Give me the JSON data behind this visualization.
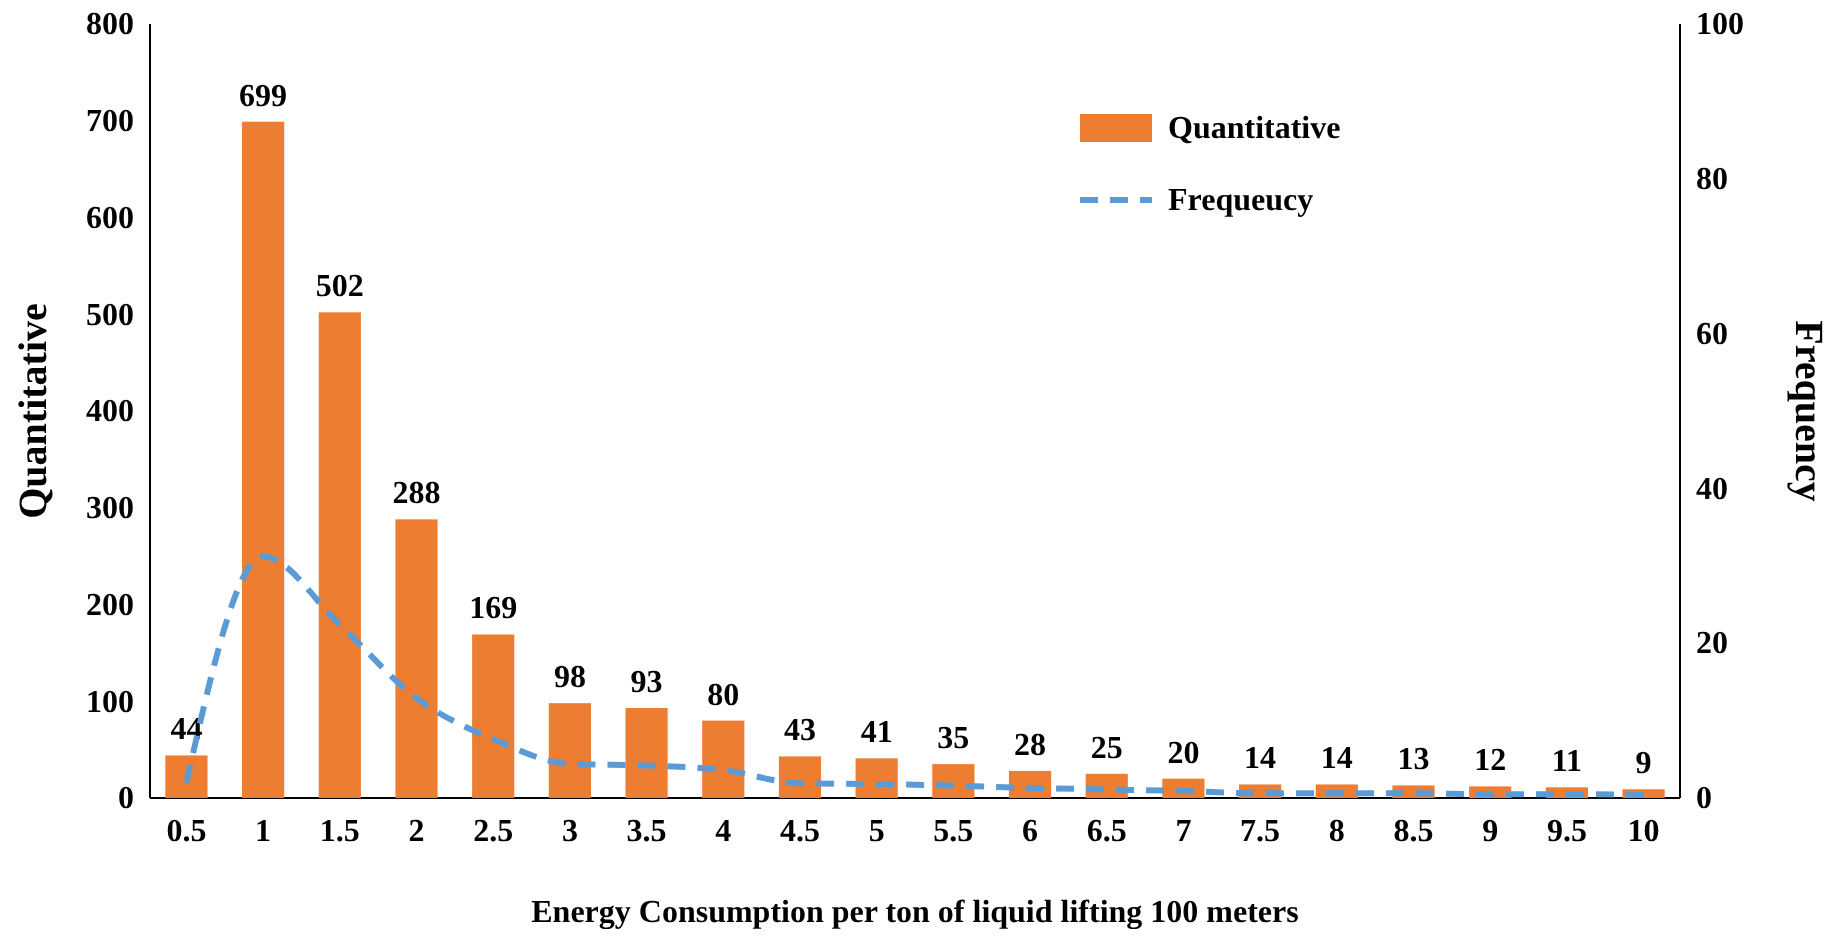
{
  "chart_data": {
    "type": "bar",
    "xlabel": "Energy Consumption per ton of liquid lifting 100 meters",
    "ylabel": "Quantitative",
    "y2label": "Frequency",
    "categories": [
      "0.5",
      "1",
      "1.5",
      "2",
      "2.5",
      "3",
      "3.5",
      "4",
      "4.5",
      "5",
      "5.5",
      "6",
      "6.5",
      "7",
      "7.5",
      "8",
      "8.5",
      "9",
      "9.5",
      "10"
    ],
    "series": [
      {
        "name": "Quantitative",
        "color": "#ed7d31",
        "values": [
          44,
          699,
          502,
          288,
          169,
          98,
          93,
          80,
          43,
          41,
          35,
          28,
          25,
          20,
          14,
          14,
          13,
          12,
          11,
          9
        ],
        "value_labels": [
          "44",
          "699",
          "502",
          "288",
          "169",
          "98",
          "93",
          "80",
          "43",
          "41",
          "35",
          "28",
          "25",
          "20",
          "14",
          "14",
          "13",
          "12",
          "11",
          "9"
        ]
      },
      {
        "name": "Frequeucy",
        "type": "line",
        "axis": "y2",
        "color": "#5b9bd5",
        "line_style": "dashed",
        "values": [
          2.0,
          31.2,
          22.4,
          12.9,
          7.6,
          4.4,
          4.2,
          3.6,
          1.9,
          1.8,
          1.6,
          1.3,
          1.1,
          0.9,
          0.6,
          0.6,
          0.6,
          0.5,
          0.5,
          0.4
        ]
      }
    ],
    "ylim": [
      0,
      800
    ],
    "yticks": [
      0,
      100,
      200,
      300,
      400,
      500,
      600,
      700,
      800
    ],
    "y2lim": [
      0,
      100
    ],
    "y2ticks": [
      0,
      20,
      40,
      60,
      80,
      100
    ],
    "grid": false,
    "legend": "top right",
    "marker": "none"
  }
}
